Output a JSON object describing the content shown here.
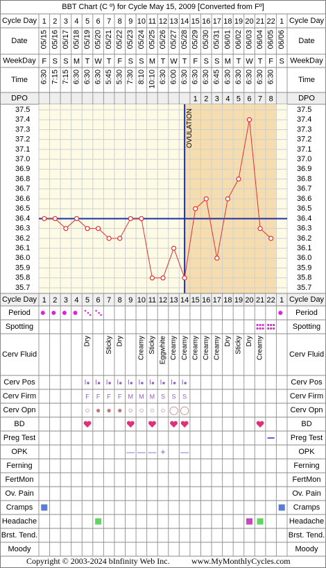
{
  "chart_data": {
    "type": "line",
    "title": "BBT Chart (C º) for Cycle May 15, 2009  [Converted from Fº]",
    "header_rows": [
      {
        "label": "Cycle Day",
        "values": [
          1,
          2,
          3,
          4,
          5,
          6,
          7,
          8,
          9,
          10,
          11,
          12,
          13,
          14,
          15,
          16,
          17,
          18,
          19,
          20,
          21,
          22,
          1
        ]
      },
      {
        "label": "Date",
        "values": [
          "05/15",
          "05/16",
          "05/17",
          "05/18",
          "05/19",
          "05/20",
          "05/21",
          "05/22",
          "05/23",
          "05/24",
          "05/25",
          "05/26",
          "05/27",
          "05/28",
          "05/29",
          "05/30",
          "05/31",
          "06/01",
          "06/02",
          "06/03",
          "06/04",
          "06/05",
          "06/06"
        ]
      },
      {
        "label": "WeekDay",
        "values": [
          "F",
          "S",
          "S",
          "M",
          "T",
          "W",
          "T",
          "F",
          "S",
          "S",
          "M",
          "T",
          "W",
          "T",
          "F",
          "S",
          "S",
          "M",
          "T",
          "W",
          "T",
          "F",
          "S"
        ]
      },
      {
        "label": "Time",
        "values": [
          "6:30",
          "7:15",
          "7:15",
          "6:30",
          "6:30",
          "6:30",
          "5:45",
          "5:30",
          "7:30",
          "8:10",
          "10:10",
          "6:30",
          "6:00",
          "6:30",
          "6:30",
          "6:30",
          "6:45",
          "6:30",
          "6:30",
          "6:30",
          "6:30",
          "6:30",
          null
        ]
      },
      {
        "label": "DPO",
        "values": [
          null,
          null,
          null,
          null,
          null,
          null,
          null,
          null,
          null,
          null,
          null,
          null,
          null,
          null,
          1,
          2,
          3,
          4,
          5,
          6,
          7,
          8,
          null
        ]
      }
    ],
    "values": [
      36.4,
      36.4,
      36.3,
      36.4,
      36.3,
      36.3,
      36.2,
      36.2,
      36.4,
      36.4,
      35.8,
      35.8,
      36.1,
      35.8,
      36.5,
      36.6,
      36.0,
      36.6,
      36.8,
      37.4,
      36.3,
      36.2,
      null
    ],
    "color": "#e03030",
    "ylim": [
      35.7,
      37.5
    ],
    "yticks": [
      37.5,
      37.4,
      37.3,
      37.2,
      37.1,
      {
        "value": 37.0,
        "label": "37.0"
      },
      36.9,
      36.8,
      36.7,
      36.6,
      36.5,
      36.4,
      36.3,
      36.2,
      36.1,
      {
        "value": 36.0,
        "label": "36.0"
      },
      35.9,
      35.8,
      35.7
    ],
    "grid": true,
    "coverline": 36.4,
    "coverline_color": "#1c2fa8",
    "ovulation_day": 14,
    "ovulation_label": "OVULATION",
    "pre_ovulation_color": "#fdfbe6",
    "post_ovulation_color": "#f6ddb0",
    "footer_rows": {
      "period": {
        "label": "Period",
        "values": [
          "heavy",
          "heavy",
          "heavy",
          "heavy",
          "light",
          "light",
          null,
          null,
          null,
          null,
          null,
          null,
          null,
          null,
          null,
          null,
          null,
          null,
          null,
          null,
          null,
          null,
          "heavy"
        ],
        "color": "#e020e0"
      },
      "spotting": {
        "label": "Spotting",
        "values": [
          null,
          null,
          null,
          null,
          null,
          null,
          null,
          null,
          null,
          null,
          null,
          null,
          null,
          null,
          null,
          null,
          null,
          null,
          null,
          null,
          true,
          true,
          null
        ],
        "color": "#c838c8"
      },
      "cerv_fluid": {
        "label": "Cerv Fluid",
        "values": [
          null,
          null,
          null,
          null,
          "Dry",
          null,
          "Sticky",
          "Dry",
          null,
          "Creamy",
          "Sticky",
          "Eggwhite",
          "Creamy",
          "Creamy",
          "Creamy",
          "Creamy",
          "Creamy",
          "Dry",
          "Sticky",
          "Dry",
          "Creamy",
          null,
          null
        ]
      },
      "cerv_pos": {
        "label": "Cerv Pos",
        "values": [
          null,
          null,
          null,
          null,
          true,
          true,
          true,
          true,
          true,
          true,
          true,
          true,
          true,
          true,
          null,
          null,
          null,
          null,
          null,
          null,
          null,
          null,
          null
        ],
        "color": "#9060c0"
      },
      "cerv_firm": {
        "label": "Cerv Firm",
        "values": [
          null,
          null,
          null,
          null,
          "F",
          "F",
          "F",
          "F",
          "M",
          "M",
          "M",
          "S",
          "S",
          "S",
          null,
          null,
          null,
          null,
          null,
          null,
          null,
          null,
          null
        ],
        "color": "#9060c0"
      },
      "cerv_opn": {
        "label": "Cerv Opn",
        "values": [
          null,
          null,
          null,
          null,
          "○",
          "●",
          "●",
          "●",
          "○",
          "○",
          "○",
          "○",
          "◯",
          "◯",
          null,
          null,
          null,
          null,
          null,
          null,
          null,
          null,
          null
        ],
        "color": "#c07878"
      },
      "bd": {
        "label": "BD",
        "values": [
          null,
          null,
          null,
          null,
          true,
          null,
          null,
          null,
          true,
          null,
          true,
          null,
          true,
          true,
          null,
          null,
          null,
          null,
          null,
          null,
          true,
          null,
          null
        ],
        "color": "#e0307a"
      },
      "preg_test": {
        "label": "Preg Test",
        "values": [
          null,
          null,
          null,
          null,
          null,
          null,
          null,
          null,
          null,
          null,
          null,
          null,
          null,
          null,
          null,
          null,
          null,
          null,
          null,
          null,
          null,
          true,
          null
        ],
        "color": "#6a5acd"
      },
      "opk": {
        "label": "OPK",
        "values": [
          null,
          null,
          null,
          null,
          null,
          null,
          null,
          null,
          "—",
          "—",
          "—",
          "+",
          null,
          "—",
          null,
          null,
          null,
          null,
          null,
          null,
          null,
          null,
          null
        ],
        "color": "#6a5acd"
      },
      "ferning": {
        "label": "Ferning"
      },
      "fertmon": {
        "label": "FertMon"
      },
      "ov_pain": {
        "label": "Ov. Pain"
      },
      "cramps": {
        "label": "Cramps",
        "values": [
          "#5b7bd5",
          null,
          null,
          null,
          null,
          null,
          null,
          null,
          null,
          null,
          null,
          null,
          null,
          null,
          null,
          null,
          null,
          null,
          null,
          null,
          null,
          null,
          "#5b7bd5"
        ]
      },
      "headache": {
        "label": "Headache",
        "values": [
          null,
          null,
          null,
          null,
          null,
          "#5fd65f",
          null,
          null,
          null,
          null,
          null,
          null,
          null,
          null,
          null,
          null,
          null,
          null,
          null,
          "#cc44bb",
          "#5fd65f",
          null,
          null
        ]
      },
      "brst_tend": {
        "label": "Brst. Tend."
      },
      "moody": {
        "label": "Moody"
      }
    },
    "copyright": "Copyright © 2003-2024 bInfinity Web Inc.",
    "website": "www.MyMonthlyCycles.com"
  }
}
